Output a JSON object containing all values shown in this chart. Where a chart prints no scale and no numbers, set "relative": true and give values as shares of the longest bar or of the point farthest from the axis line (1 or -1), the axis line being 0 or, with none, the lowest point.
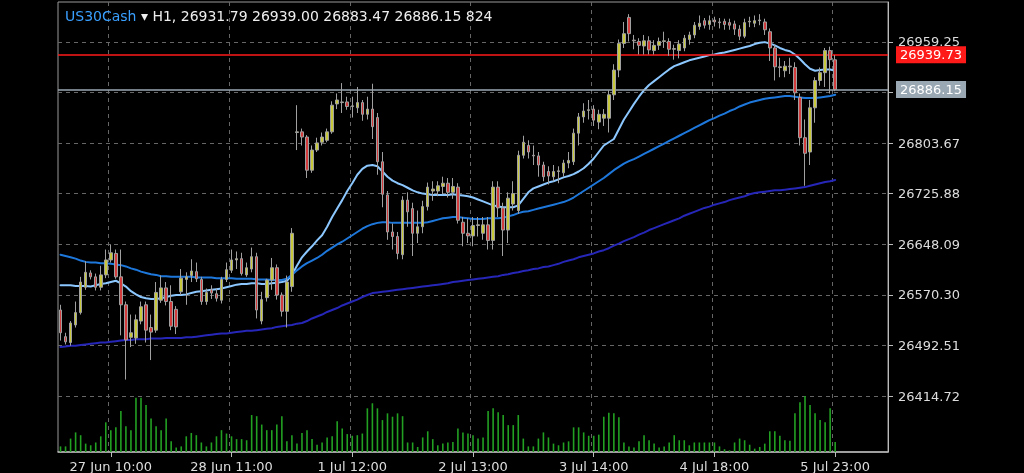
{
  "chart_data": [
    {
      "type": "candlestick",
      "title": "US30Cash ▾ H1, 26931.79 26939.00 26883.47 26886.15 824",
      "categories": [
        null,
        null,
        null,
        null,
        null,
        null,
        null,
        null,
        null,
        null,
        "27 Jun 10:00",
        null,
        null,
        null,
        null,
        null,
        null,
        null,
        null,
        null,
        null,
        null,
        null,
        null,
        null,
        null,
        null,
        null,
        null,
        null,
        null,
        null,
        null,
        null,
        "28 Jun 11:00",
        null,
        null,
        null,
        null,
        null,
        null,
        null,
        null,
        null,
        null,
        null,
        null,
        null,
        null,
        null,
        null,
        null,
        null,
        null,
        null,
        null,
        null,
        null,
        "1 Jul 12:00",
        null,
        null,
        null,
        null,
        null,
        null,
        null,
        null,
        null,
        null,
        null,
        null,
        null,
        null,
        null,
        null,
        null,
        null,
        null,
        null,
        null,
        null,
        null,
        "2 Jul 13:00",
        null,
        null,
        null,
        null,
        null,
        null,
        null,
        null,
        null,
        null,
        null,
        null,
        null,
        null,
        null,
        null,
        null,
        null,
        null,
        null,
        null,
        null,
        null,
        "3 Jul 14:00",
        null,
        null,
        null,
        null,
        null,
        null,
        null,
        null,
        null,
        null,
        null,
        null,
        null,
        null,
        null,
        null,
        null,
        null,
        null,
        null,
        null,
        null,
        null,
        "4 Jul 18:00",
        null,
        null,
        null,
        null,
        null,
        null,
        null,
        null,
        null,
        null,
        null,
        null,
        null,
        null,
        null,
        null,
        null,
        null,
        null,
        null,
        null,
        null,
        null,
        "5 Jul 23:00"
      ],
      "ohlc": [
        [
          26547,
          26555,
          26500,
          26512
        ],
        [
          26506,
          26512,
          26494,
          26498
        ],
        [
          26497,
          26530,
          26492,
          26527
        ],
        [
          26524,
          26560,
          26520,
          26543
        ],
        [
          26543,
          26598,
          26540,
          26590
        ],
        [
          26582,
          26622,
          26578,
          26605
        ],
        [
          26604,
          26608,
          26594,
          26598
        ],
        [
          26598,
          26603,
          26577,
          26582
        ],
        [
          26582,
          26615,
          26577,
          26601
        ],
        [
          26601,
          26640,
          26596,
          26624
        ],
        [
          26624,
          26648,
          26620,
          26635
        ],
        [
          26634,
          26640,
          26595,
          26598
        ],
        [
          26598,
          26640,
          26508,
          26555
        ],
        [
          26555,
          26560,
          26440,
          26501
        ],
        [
          26505,
          26540,
          26490,
          26512
        ],
        [
          26504,
          26540,
          26495,
          26532
        ],
        [
          26530,
          26560,
          26525,
          26552
        ],
        [
          26555,
          26560,
          26497,
          26516
        ],
        [
          26520,
          26540,
          26470,
          26513
        ],
        [
          26516,
          26590,
          26512,
          26574
        ],
        [
          26562,
          26600,
          26558,
          26581
        ],
        [
          26581,
          26590,
          26554,
          26560
        ],
        [
          26560,
          26585,
          26516,
          26522
        ],
        [
          26548,
          26553,
          26510,
          26521
        ],
        [
          26575,
          26610,
          26570,
          26596
        ],
        [
          26594,
          26605,
          26555,
          26598
        ],
        [
          26600,
          26625,
          26590,
          26607
        ],
        [
          26606,
          26620,
          26590,
          26595
        ],
        [
          26594,
          26598,
          26555,
          26560
        ],
        [
          26560,
          26580,
          26555,
          26574
        ],
        [
          26578,
          26585,
          26564,
          26573
        ],
        [
          26572,
          26580,
          26560,
          26565
        ],
        [
          26562,
          26598,
          26557,
          26594
        ],
        [
          26594,
          26620,
          26590,
          26609
        ],
        [
          26608,
          26640,
          26604,
          26624
        ],
        [
          26624,
          26637,
          26610,
          26626
        ],
        [
          26626,
          26635,
          26600,
          26603
        ],
        [
          26601,
          26620,
          26598,
          26612
        ],
        [
          26610,
          26643,
          26605,
          26629
        ],
        [
          26629,
          26635,
          26534,
          26547
        ],
        [
          26530,
          26575,
          26525,
          26563
        ],
        [
          26566,
          26595,
          26560,
          26593
        ],
        [
          26593,
          26627,
          26578,
          26612
        ],
        [
          26612,
          26617,
          26563,
          26570
        ],
        [
          26570,
          26574,
          26537,
          26545
        ],
        [
          26545,
          26600,
          26520,
          26590
        ],
        [
          26583,
          26673,
          26575,
          26665
        ],
        [
          26820,
          26862,
          26793,
          26821
        ],
        [
          26821,
          26826,
          26800,
          26813
        ],
        [
          26813,
          26816,
          26750,
          26762
        ],
        [
          26762,
          26800,
          26758,
          26793
        ],
        [
          26793,
          26812,
          26790,
          26804
        ],
        [
          26805,
          26820,
          26800,
          26813
        ],
        [
          26808,
          26826,
          26805,
          26821
        ],
        [
          26821,
          26868,
          26818,
          26862
        ],
        [
          26864,
          26880,
          26856,
          26870
        ],
        [
          26866,
          26896,
          26850,
          26867
        ],
        [
          26867,
          26875,
          26855,
          26860
        ],
        [
          26860,
          26875,
          26843,
          26861
        ],
        [
          26858,
          26890,
          26850,
          26866
        ],
        [
          26866,
          26870,
          26838,
          26848
        ],
        [
          26848,
          26875,
          26840,
          26856
        ],
        [
          26856,
          26895,
          26810,
          26829
        ],
        [
          26843,
          26850,
          26755,
          26775
        ],
        [
          26775,
          26790,
          26705,
          26725
        ],
        [
          26724,
          26730,
          26655,
          26667
        ],
        [
          26667,
          26680,
          26640,
          26660
        ],
        [
          26660,
          26667,
          26625,
          26634
        ],
        [
          26632,
          26722,
          26625,
          26716
        ],
        [
          26716,
          26728,
          26675,
          26698
        ],
        [
          26703,
          26712,
          26630,
          26665
        ],
        [
          26665,
          26700,
          26650,
          26675
        ],
        [
          26675,
          26715,
          26665,
          26706
        ],
        [
          26706,
          26743,
          26700,
          26736
        ],
        [
          26730,
          26745,
          26715,
          26733
        ],
        [
          26730,
          26745,
          26722,
          26738
        ],
        [
          26737,
          26752,
          26725,
          26742
        ],
        [
          26742,
          26750,
          26720,
          26728
        ],
        [
          26728,
          26750,
          26718,
          26737
        ],
        [
          26736,
          26742,
          26680,
          26685
        ],
        [
          26682,
          26690,
          26645,
          26665
        ],
        [
          26665,
          26688,
          26650,
          26661
        ],
        [
          26661,
          26690,
          26645,
          26677
        ],
        [
          26677,
          26690,
          26660,
          26678
        ],
        [
          26665,
          26690,
          26655,
          26678
        ],
        [
          26678,
          26690,
          26640,
          26654
        ],
        [
          26654,
          26745,
          26640,
          26736
        ],
        [
          26736,
          26745,
          26690,
          26704
        ],
        [
          26704,
          26712,
          26630,
          26670
        ],
        [
          26670,
          26728,
          26650,
          26719
        ],
        [
          26710,
          26745,
          26700,
          26726
        ],
        [
          26700,
          26792,
          26695,
          26785
        ],
        [
          26785,
          26815,
          26780,
          26805
        ],
        [
          26800,
          26808,
          26780,
          26790
        ],
        [
          26785,
          26800,
          26770,
          26784
        ],
        [
          26784,
          26790,
          26752,
          26770
        ],
        [
          26770,
          26775,
          26745,
          26752
        ],
        [
          26760,
          26768,
          26740,
          26753
        ],
        [
          26752,
          26770,
          26745,
          26760
        ],
        [
          26760,
          26768,
          26742,
          26761
        ],
        [
          26758,
          26778,
          26752,
          26773
        ],
        [
          26773,
          26790,
          26765,
          26777
        ],
        [
          26775,
          26826,
          26770,
          26819
        ],
        [
          26819,
          26850,
          26800,
          26844
        ],
        [
          26844,
          26865,
          26835,
          26853
        ],
        [
          26854,
          26870,
          26840,
          26855
        ],
        [
          26856,
          26862,
          26830,
          26839
        ],
        [
          26836,
          26855,
          26825,
          26848
        ],
        [
          26842,
          26856,
          26830,
          26848
        ],
        [
          26842,
          26885,
          26820,
          26878
        ],
        [
          26878,
          26925,
          26870,
          26916
        ],
        [
          26916,
          26963,
          26905,
          26957
        ],
        [
          26957,
          26990,
          26950,
          26972
        ],
        [
          26997,
          27002,
          26960,
          26972
        ],
        [
          26962,
          26970,
          26948,
          26961
        ],
        [
          26960,
          26965,
          26940,
          26954
        ],
        [
          26953,
          26970,
          26940,
          26961
        ],
        [
          26961,
          26968,
          26940,
          26947
        ],
        [
          26946,
          26962,
          26940,
          26954
        ],
        [
          26954,
          26966,
          26947,
          26960
        ],
        [
          26960,
          26975,
          26950,
          26961
        ],
        [
          26960,
          26965,
          26938,
          26948
        ],
        [
          26948,
          26955,
          26932,
          26949
        ],
        [
          26946,
          26962,
          26934,
          26956
        ],
        [
          26950,
          26970,
          26945,
          26965
        ],
        [
          26963,
          26975,
          26955,
          26970
        ],
        [
          26970,
          26990,
          26965,
          26985
        ],
        [
          26983,
          27000,
          26978,
          26988
        ],
        [
          26992,
          26996,
          26980,
          26985
        ],
        [
          26986,
          27000,
          26978,
          26992
        ],
        [
          26993,
          26998,
          26983,
          26990
        ],
        [
          26990,
          26996,
          26980,
          26989
        ],
        [
          26991,
          26995,
          26978,
          26986
        ],
        [
          26989,
          26995,
          26978,
          26985
        ],
        [
          26987,
          26992,
          26970,
          26979
        ],
        [
          26979,
          26985,
          26962,
          26968
        ],
        [
          26968,
          26995,
          26965,
          26989
        ],
        [
          26990,
          26998,
          26982,
          26991
        ],
        [
          26988,
          27000,
          26982,
          26992
        ],
        [
          26992,
          27002,
          26985,
          26993
        ],
        [
          26990,
          26995,
          26970,
          26978
        ],
        [
          26975,
          26980,
          26930,
          26950
        ],
        [
          26950,
          26955,
          26900,
          26921
        ],
        [
          26921,
          26935,
          26905,
          26920
        ],
        [
          26915,
          26930,
          26905,
          26922
        ],
        [
          26922,
          26935,
          26910,
          26921
        ],
        [
          26920,
          26928,
          26870,
          26881
        ],
        [
          26874,
          26880,
          26800,
          26812
        ],
        [
          26812,
          26840,
          26738,
          26788
        ],
        [
          26790,
          26870,
          26770,
          26858
        ],
        [
          26858,
          26905,
          26835,
          26900
        ],
        [
          26900,
          26920,
          26892,
          26912
        ],
        [
          26912,
          26950,
          26890,
          26946
        ],
        [
          26946,
          26952,
          26880,
          26932
        ],
        [
          26931.79,
          26939.0,
          26883.47,
          26886.15
        ]
      ],
      "colors": [
        "#d23c3c",
        "#d23c3c",
        "#c8c83c",
        "#c8c83c",
        "#c8c83c",
        "#c8c83c",
        "#d23c3c",
        "#d23c3c",
        "#c8c83c",
        "#c8c83c",
        "#c8c83c",
        "#d23c3c",
        "#d23c3c",
        "#d23c3c",
        "#c8c83c",
        "#c8c83c",
        "#c8c83c",
        "#d23c3c",
        "#d23c3c",
        "#c8c83c",
        "#c8c83c",
        "#d23c3c",
        "#d23c3c",
        "#d23c3c",
        "#c8c83c",
        "#c8c83c",
        "#c8c83c",
        "#d23c3c",
        "#d23c3c",
        "#c8c83c",
        "#d23c3c",
        "#d23c3c",
        "#c8c83c",
        "#c8c83c",
        "#c8c83c",
        "#c8c83c",
        "#d23c3c",
        "#c8c83c",
        "#c8c83c",
        "#d23c3c",
        "#c8c83c",
        "#c8c83c",
        "#c8c83c",
        "#d23c3c",
        "#d23c3c",
        "#c8c83c",
        "#c8c83c",
        "#c8c83c",
        "#d23c3c",
        "#d23c3c",
        "#c8c83c",
        "#c8c83c",
        "#c8c83c",
        "#c8c83c",
        "#c8c83c",
        "#c8c83c",
        "#c8c83c",
        "#d23c3c",
        "#c8c83c",
        "#c8c83c",
        "#d23c3c",
        "#c8c83c",
        "#d23c3c",
        "#d23c3c",
        "#d23c3c",
        "#d23c3c",
        "#d23c3c",
        "#d23c3c",
        "#c8c83c",
        "#d23c3c",
        "#d23c3c",
        "#c8c83c",
        "#c8c83c",
        "#c8c83c",
        "#c8c83c",
        "#c8c83c",
        "#c8c83c",
        "#d23c3c",
        "#c8c83c",
        "#d23c3c",
        "#d23c3c",
        "#d23c3c",
        "#c8c83c",
        "#c8c83c",
        "#c8c83c",
        "#d23c3c",
        "#c8c83c",
        "#d23c3c",
        "#d23c3c",
        "#c8c83c",
        "#c8c83c",
        "#c8c83c",
        "#c8c83c",
        "#d23c3c",
        "#d23c3c",
        "#d23c3c",
        "#d23c3c",
        "#d23c3c",
        "#c8c83c",
        "#c8c83c",
        "#c8c83c",
        "#c8c83c",
        "#c8c83c",
        "#c8c83c",
        "#c8c83c",
        "#c8c83c",
        "#d23c3c",
        "#c8c83c",
        "#c8c83c",
        "#c8c83c",
        "#c8c83c",
        "#c8c83c",
        "#c8c83c",
        "#d23c3c",
        "#d23c3c",
        "#d23c3c",
        "#c8c83c",
        "#d23c3c",
        "#c8c83c",
        "#c8c83c",
        "#c8c83c",
        "#d23c3c",
        "#c8c83c",
        "#c8c83c",
        "#c8c83c",
        "#c8c83c",
        "#c8c83c",
        "#c8c83c",
        "#d23c3c",
        "#c8c83c",
        "#d23c3c",
        "#d23c3c",
        "#d23c3c",
        "#d23c3c",
        "#d23c3c",
        "#d23c3c",
        "#c8c83c",
        "#c8c83c",
        "#c8c83c",
        "#c8c83c",
        "#d23c3c",
        "#d23c3c",
        "#d23c3c",
        "#d23c3c",
        "#c8c83c",
        "#d23c3c",
        "#d23c3c",
        "#d23c3c",
        "#d23c3c",
        "#c8c83c",
        "#c8c83c",
        "#c8c83c",
        "#c8c83c",
        "#d23c3c",
        "#d23c3c"
      ],
      "series": [
        {
          "type": "line",
          "color": "#8cc8ff",
          "values": [
            26585,
            26585,
            26585,
            26584,
            26584,
            26584,
            26583,
            26585,
            26587,
            26588,
            26590,
            26592,
            26588,
            26583,
            26576,
            26571,
            26567,
            26565,
            26564,
            26564,
            26565,
            26567,
            26569,
            26570,
            26570,
            26571,
            26573,
            26575,
            26576,
            26577,
            26578,
            26579,
            26580,
            26582,
            26584,
            26586,
            26587,
            26587,
            26588,
            26588,
            26587,
            26587,
            26588,
            26589,
            26590,
            26592,
            26601,
            26615,
            26628,
            26637,
            26645,
            26654,
            26662,
            26675,
            26690,
            26703,
            26716,
            26730,
            26742,
            26755,
            26764,
            26769,
            26770,
            26768,
            26760,
            26752,
            26746,
            26742,
            26739,
            26735,
            26731,
            26728,
            26726,
            26725,
            26724,
            26724,
            26724,
            26724,
            26725,
            26724,
            26723,
            26722,
            26720,
            26717,
            26714,
            26711,
            26708,
            26706,
            26705,
            26705,
            26705,
            26708,
            26718,
            26728,
            26734,
            26737,
            26740,
            26743,
            26745,
            26748,
            26751,
            26753,
            26756,
            26760,
            26765,
            26772,
            26780,
            26790,
            26800,
            26805,
            26810,
            26825,
            26840,
            26852,
            26864,
            26875,
            26885,
            26893,
            26899,
            26905,
            26911,
            26917,
            26922,
            26925,
            26928,
            26931,
            26933,
            26935,
            26937,
            26939,
            26940,
            26942,
            26943,
            26945,
            26947,
            26949,
            26951,
            26953,
            26956,
            26958,
            26959,
            26957,
            26954,
            26950,
            26947,
            26945,
            26940,
            26933,
            26925,
            26918,
            26915,
            26916,
            26917,
            26917,
            26915
          ]
        },
        {
          "type": "line",
          "color": "#1e78dc",
          "values": [
            26632,
            26630,
            26628,
            26626,
            26623,
            26621,
            26620,
            26620,
            26619,
            26619,
            26618,
            26617,
            26616,
            26614,
            26611,
            26609,
            26606,
            26604,
            26602,
            26601,
            26599,
            26599,
            26598,
            26598,
            26598,
            26598,
            26598,
            26597,
            26597,
            26597,
            26597,
            26596,
            26596,
            26596,
            26596,
            26595,
            26595,
            26595,
            26595,
            26594,
            26594,
            26594,
            26593,
            26593,
            26593,
            26595,
            26601,
            26608,
            26614,
            26619,
            26623,
            26627,
            26632,
            26638,
            26643,
            26648,
            26652,
            26657,
            26662,
            26667,
            26672,
            26676,
            26679,
            26681,
            26682,
            26682,
            26681,
            26681,
            26681,
            26681,
            26681,
            26681,
            26681,
            26682,
            26684,
            26686,
            26688,
            26689,
            26690,
            26690,
            26689,
            26688,
            26687,
            26687,
            26687,
            26688,
            26688,
            26688,
            26689,
            26691,
            26693,
            26696,
            26698,
            26699,
            26701,
            26703,
            26705,
            26707,
            26709,
            26711,
            26713,
            26716,
            26720,
            26725,
            26730,
            26735,
            26740,
            26745,
            26750,
            26756,
            26762,
            26767,
            26772,
            26776,
            26779,
            26783,
            26787,
            26791,
            26795,
            26799,
            26803,
            26807,
            26811,
            26815,
            26819,
            26823,
            26827,
            26831,
            26835,
            26839,
            26842,
            26846,
            26849,
            26853,
            26856,
            26860,
            26863,
            26866,
            26868,
            26870,
            26872,
            26873,
            26874,
            26875,
            26876,
            26876,
            26875,
            26874,
            26873,
            26873,
            26873,
            26874,
            26875,
            26876,
            26878
          ]
        },
        {
          "type": "line",
          "color": "#2626b8",
          "values": [
            26490,
            26491,
            26492,
            26492,
            26493,
            26494,
            26495,
            26496,
            26497,
            26497,
            26498,
            26499,
            26500,
            26501,
            26501,
            26502,
            26502,
            26502,
            26503,
            26503,
            26503,
            26504,
            26504,
            26504,
            26504,
            26505,
            26505,
            26506,
            26507,
            26508,
            26509,
            26510,
            26511,
            26511,
            26512,
            26513,
            26514,
            26515,
            26515,
            26516,
            26517,
            26518,
            26519,
            26521,
            26522,
            26523,
            26524,
            26526,
            26527,
            26530,
            26534,
            26537,
            26540,
            26544,
            26547,
            26550,
            26554,
            26557,
            26560,
            26563,
            26567,
            26570,
            26573,
            26574,
            26575,
            26576,
            26577,
            26578,
            26579,
            26580,
            26581,
            26582,
            26583,
            26584,
            26585,
            26586,
            26587,
            26588,
            26590,
            26591,
            26592,
            26593,
            26594,
            26595,
            26596,
            26597,
            26598,
            26599,
            26601,
            26602,
            26604,
            26605,
            26607,
            26608,
            26610,
            26611,
            26613,
            26614,
            26616,
            26618,
            26621,
            26623,
            26625,
            26628,
            26630,
            26632,
            26634,
            26637,
            26639,
            26642,
            26646,
            26649,
            26653,
            26656,
            26659,
            26663,
            26666,
            26670,
            26673,
            26676,
            26679,
            26682,
            26685,
            26688,
            26692,
            26695,
            26698,
            26701,
            26704,
            26706,
            26709,
            26711,
            26713,
            26716,
            26718,
            26720,
            26722,
            26725,
            26727,
            26728,
            26729,
            26730,
            26731,
            26731,
            26732,
            26733,
            26734,
            26735,
            26736,
            26738,
            26740,
            26742,
            26744,
            26745,
            26747
          ]
        }
      ],
      "ylim": [
        26328.6,
        27020.7
      ],
      "yticks": [
        {
          "value": 26414.72,
          "label": "26414.72"
        },
        {
          "value": 26492.51,
          "label": "26492.51"
        },
        {
          "value": 26570.3,
          "label": "26570.30"
        },
        {
          "value": 26648.09,
          "label": "26648.09"
        },
        {
          "value": 26725.88,
          "label": "26725.88"
        },
        {
          "value": 26803.67,
          "label": "26803.67"
        },
        {
          "value": 26881.46,
          "label": null
        },
        {
          "value": 26959.25,
          "label": "26959.25"
        }
      ],
      "ref_lines": [
        {
          "axis": "y",
          "value": 26939.73,
          "label": "26939.73",
          "color": "#ff1a1a"
        },
        {
          "axis": "y",
          "value": 26886.15,
          "label": "26886.15",
          "color": "#9aa8b4"
        }
      ],
      "grid": true,
      "line_style": "solid"
    },
    {
      "type": "bar",
      "relative": true,
      "color": "#22a022",
      "categories": [
        null,
        null,
        null,
        null,
        null,
        null,
        null,
        null,
        null,
        null,
        null,
        null,
        null,
        null,
        null,
        null,
        null,
        null,
        null,
        null,
        null,
        null,
        null,
        null,
        null,
        null,
        null,
        null,
        null,
        null,
        null,
        null,
        null,
        null,
        null,
        null,
        null,
        null,
        null,
        null,
        null,
        null,
        null,
        null,
        null,
        null,
        null,
        null,
        null,
        null,
        null,
        null,
        null,
        null,
        null,
        null,
        null,
        null,
        null,
        null,
        null,
        null,
        null,
        null,
        null,
        null,
        null,
        null,
        null,
        null,
        null,
        null,
        null,
        null,
        null,
        null,
        null,
        null,
        null,
        null,
        null,
        null,
        null,
        null,
        null,
        null,
        null,
        null,
        null,
        null,
        null,
        null,
        null,
        null,
        null,
        null,
        null,
        null,
        null,
        null,
        null,
        null,
        null,
        null,
        null,
        null,
        null,
        null,
        null,
        null,
        null,
        null,
        null,
        null,
        null,
        null,
        null,
        null,
        null,
        null,
        null,
        null,
        null,
        null,
        null,
        null,
        null,
        null,
        null,
        null,
        null,
        null,
        null,
        null,
        null,
        null,
        null,
        null,
        null,
        null,
        null,
        null,
        null,
        null,
        null,
        null,
        null,
        null,
        null,
        null,
        null,
        null,
        null,
        null,
        null
      ],
      "values": [
        0.1,
        0.1,
        0.24,
        0.35,
        0.3,
        0.15,
        0.12,
        0.17,
        0.28,
        0.53,
        0.39,
        0.44,
        0.73,
        0.46,
        0.39,
        0.97,
        0.97,
        0.84,
        0.6,
        0.46,
        0.39,
        0.6,
        0.19,
        0.08,
        0.1,
        0.28,
        0.34,
        0.3,
        0.17,
        0.1,
        0.17,
        0.28,
        0.39,
        0.33,
        0.28,
        0.23,
        0.23,
        0.21,
        0.66,
        0.64,
        0.49,
        0.39,
        0.39,
        0.49,
        0.64,
        0.19,
        0.3,
        0.15,
        0.34,
        0.39,
        0.23,
        0.13,
        0.17,
        0.26,
        0.28,
        0.55,
        0.42,
        0.32,
        0.29,
        0.3,
        0.33,
        0.78,
        0.87,
        0.78,
        0.57,
        0.69,
        0.63,
        0.69,
        0.64,
        0.17,
        0.17,
        0.09,
        0.26,
        0.37,
        0.23,
        0.12,
        0.15,
        0.17,
        0.18,
        0.42,
        0.35,
        0.33,
        0.3,
        0.24,
        0.26,
        0.73,
        0.78,
        0.71,
        0.66,
        0.48,
        0.48,
        0.66,
        0.24,
        0.1,
        0.1,
        0.24,
        0.35,
        0.26,
        0.15,
        0.12,
        0.17,
        0.19,
        0.44,
        0.44,
        0.35,
        0.29,
        0.29,
        0.31,
        0.63,
        0.7,
        0.69,
        0.62,
        0.17,
        0.1,
        0.08,
        0.19,
        0.3,
        0.21,
        0.15,
        0.08,
        0.1,
        0.17,
        0.3,
        0.21,
        0.21,
        0.12,
        0.17,
        0.17,
        0.17,
        0.17,
        0.17,
        0.1,
        0.05,
        0.03,
        0.17,
        0.24,
        0.21,
        0.13,
        0.06,
        0.09,
        0.15,
        0.37,
        0.37,
        0.29,
        0.21,
        0.2,
        0.69,
        0.89,
        1,
        0.84,
        0.69,
        0.57,
        0.53,
        0.78,
        0.18
      ]
    }
  ]
}
